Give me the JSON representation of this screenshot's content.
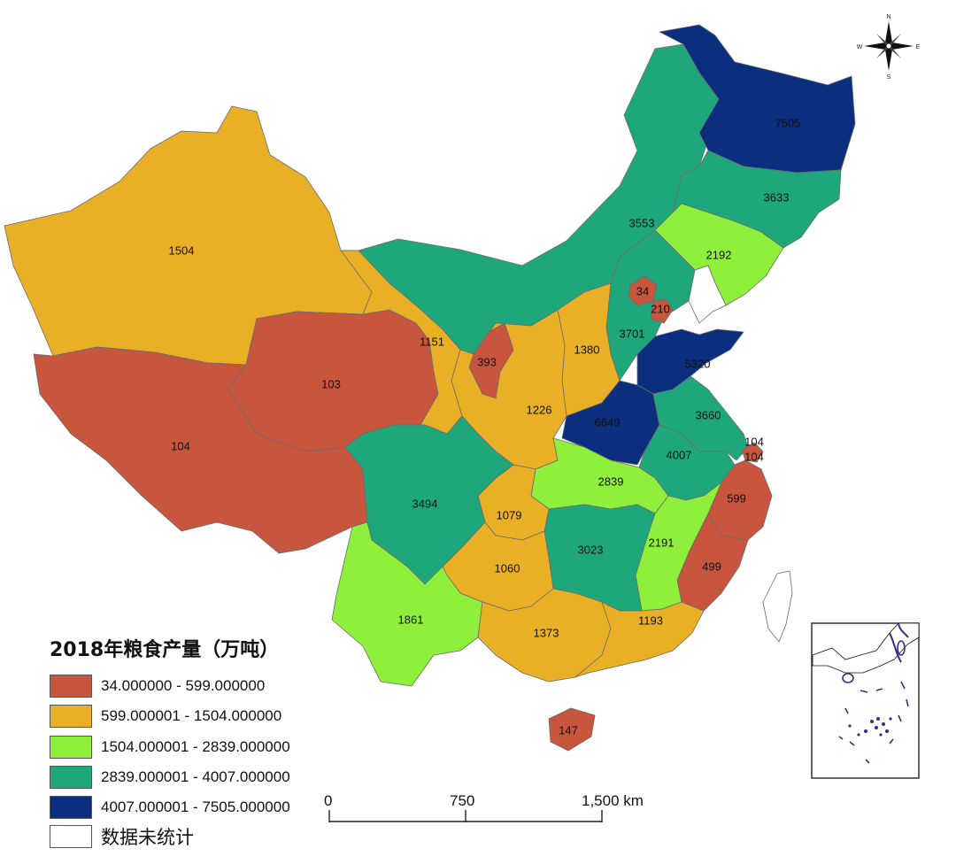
{
  "legend": {
    "title": "2018年粮食产量（万吨）",
    "classes": [
      {
        "label": "34.000000 - 599.000000",
        "color": "#c8553d"
      },
      {
        "label": "599.000001 - 1504.000000",
        "color": "#e9b026"
      },
      {
        "label": "1504.000001 - 2839.000000",
        "color": "#8ef03a"
      },
      {
        "label": "2839.000001 - 4007.000000",
        "color": "#1ea77b"
      },
      {
        "label": "4007.000001 - 7505.000000",
        "color": "#0b2f7e"
      }
    ],
    "no_data": {
      "label": "数据未统计",
      "color": "#ffffff"
    }
  },
  "scale_bar": {
    "labels": [
      "0",
      "750",
      "1,500 km"
    ]
  },
  "compass": {
    "n": "N",
    "s": "S",
    "e": "E",
    "w": "W"
  },
  "provinces": [
    {
      "id": "heilongjiang",
      "value": "7505",
      "class": 4
    },
    {
      "id": "jilin",
      "value": "3633",
      "class": 3
    },
    {
      "id": "liaoning",
      "value": "2192",
      "class": 2
    },
    {
      "id": "inner-mongolia",
      "value": "3553",
      "class": 3
    },
    {
      "id": "xinjiang",
      "value": "1504",
      "class": 1
    },
    {
      "id": "tibet",
      "value": "104",
      "class": 0
    },
    {
      "id": "qinghai",
      "value": "103",
      "class": 0
    },
    {
      "id": "gansu",
      "value": "1151",
      "class": 1
    },
    {
      "id": "ningxia",
      "value": "393",
      "class": 0
    },
    {
      "id": "shaanxi",
      "value": "1226",
      "class": 1
    },
    {
      "id": "shanxi",
      "value": "1380",
      "class": 1
    },
    {
      "id": "hebei",
      "value": "3701",
      "class": 3
    },
    {
      "id": "beijing",
      "value": "34",
      "class": 0
    },
    {
      "id": "tianjin",
      "value": "210",
      "class": 0
    },
    {
      "id": "shandong",
      "value": "5320",
      "class": 4
    },
    {
      "id": "henan",
      "value": "6649",
      "class": 4
    },
    {
      "id": "jiangsu",
      "value": "3660",
      "class": 3
    },
    {
      "id": "anhui",
      "value": "4007",
      "class": 3
    },
    {
      "id": "shanghai",
      "value": "104",
      "class": 0
    },
    {
      "id": "zhejiang",
      "value": "599",
      "class": 0
    },
    {
      "id": "sichuan",
      "value": "3494",
      "class": 3
    },
    {
      "id": "chongqing",
      "value": "1079",
      "class": 1
    },
    {
      "id": "hubei",
      "value": "2839",
      "class": 2
    },
    {
      "id": "hunan",
      "value": "3023",
      "class": 3
    },
    {
      "id": "jiangxi",
      "value": "2191",
      "class": 2
    },
    {
      "id": "fujian",
      "value": "499",
      "class": 0
    },
    {
      "id": "guizhou",
      "value": "1060",
      "class": 1
    },
    {
      "id": "yunnan",
      "value": "1861",
      "class": 2
    },
    {
      "id": "guangxi",
      "value": "1373",
      "class": 1
    },
    {
      "id": "guangdong",
      "value": "1193",
      "class": 1
    },
    {
      "id": "hainan",
      "value": "147",
      "class": 0
    },
    {
      "id": "taiwan",
      "value": "",
      "class": null
    }
  ]
}
